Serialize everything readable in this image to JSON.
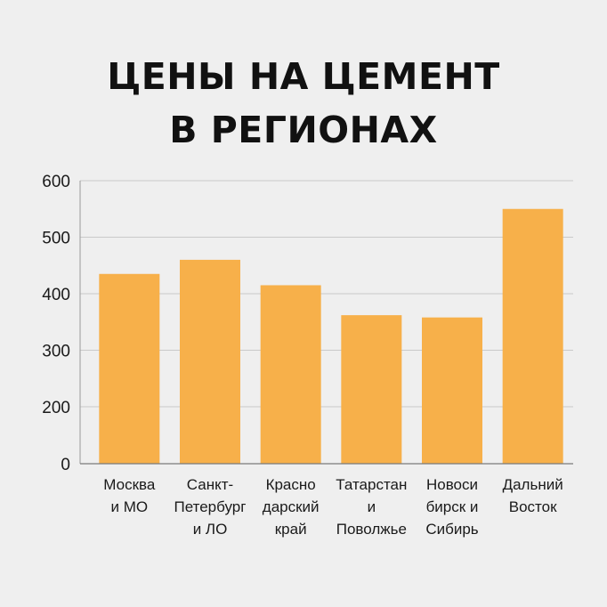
{
  "chart_data": {
    "type": "bar",
    "title": [
      "ЦЕНЫ НА ЦЕМЕНТ",
      "В РЕГИОНАХ"
    ],
    "xlabel": "",
    "ylabel": "",
    "ylim": [
      0,
      600
    ],
    "yticks": [
      0,
      200,
      300,
      400,
      500,
      600
    ],
    "grid": true,
    "categories": [
      [
        "Москва",
        "и МО"
      ],
      [
        "Санкт-",
        "Петербург",
        "и ЛО"
      ],
      [
        "Красно",
        "дарский",
        "край"
      ],
      [
        "Татарстан",
        "и",
        "Поволжье"
      ],
      [
        "Новоси",
        "бирск и",
        "Сибирь"
      ],
      [
        "Дальний",
        "Восток"
      ]
    ],
    "values": [
      435,
      460,
      415,
      362,
      358,
      550
    ],
    "bar_color": "#f7b04a",
    "grid_color": "#c9c9c9"
  }
}
